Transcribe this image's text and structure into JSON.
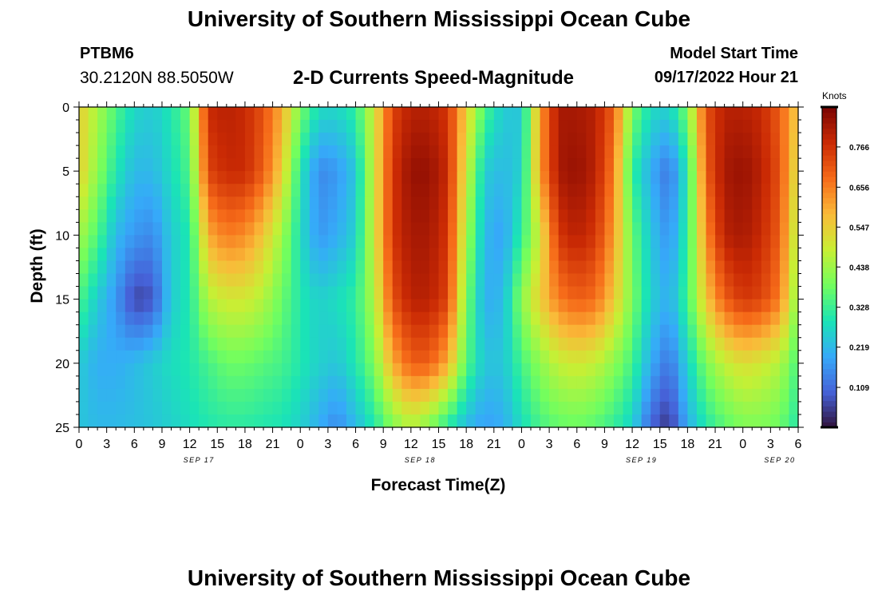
{
  "header": {
    "title": "University of Southern Mississippi Ocean Cube",
    "station": "PTBM6",
    "coords": "30.2120N  88.5050W",
    "subtitle": "2-D Currents Speed-Magnitude",
    "model_start_label": "Model Start Time",
    "model_start_value": "09/17/2022 Hour 21"
  },
  "footer": {
    "title": "University of Southern Mississippi Ocean Cube"
  },
  "colors": {
    "colormap": [
      "#30123b",
      "#4662d8",
      "#36aaf9",
      "#1ae4b6",
      "#72fe5e",
      "#c8ef34",
      "#faba39",
      "#f66b19",
      "#ca2a04",
      "#7a0403"
    ]
  },
  "chart_data": {
    "type": "heatmap",
    "title": "2-D Currents Speed-Magnitude",
    "xlabel": "Forecast Time(Z)",
    "ylabel": "Depth (ft)",
    "x_range_hours": [
      0,
      78
    ],
    "ylim": [
      0,
      25
    ],
    "y_ticks": [
      0,
      5,
      10,
      15,
      20,
      25
    ],
    "x_tick_labels": [
      "0",
      "3",
      "6",
      "9",
      "12",
      "15",
      "18",
      "21",
      "0",
      "3",
      "6",
      "9",
      "12",
      "15",
      "18",
      "21",
      "0",
      "3",
      "6",
      "9",
      "12",
      "15",
      "18",
      "21",
      "0",
      "3",
      "6"
    ],
    "date_labels": [
      {
        "hour": 13,
        "label": "SEP 17"
      },
      {
        "hour": 37,
        "label": "SEP 18"
      },
      {
        "hour": 61,
        "label": "SEP 19"
      },
      {
        "hour": 76,
        "label": "SEP 20"
      }
    ],
    "colorbar": {
      "units": "Knots",
      "min": 0.0,
      "max": 0.875,
      "ticks": [
        0.109,
        0.219,
        0.328,
        0.438,
        0.547,
        0.656,
        0.766
      ]
    },
    "depths_ft": [
      0,
      5,
      10,
      15,
      20,
      25
    ],
    "hours": [
      0,
      2,
      4,
      6,
      8,
      10,
      12,
      14,
      16,
      18,
      20,
      22,
      24,
      26,
      28,
      30,
      32,
      34,
      36,
      38,
      40,
      42,
      44,
      46,
      48,
      50,
      52,
      54,
      56,
      58,
      60,
      62,
      64,
      66,
      68,
      70,
      72,
      74,
      76,
      78
    ],
    "speed_knots": [
      [
        0.55,
        0.45,
        0.35,
        0.27,
        0.25,
        0.3,
        0.38,
        0.78,
        0.8,
        0.78,
        0.72,
        0.6,
        0.4,
        0.28,
        0.27,
        0.32,
        0.5,
        0.74,
        0.8,
        0.8,
        0.76,
        0.55,
        0.35,
        0.25,
        0.24,
        0.62,
        0.82,
        0.82,
        0.8,
        0.7,
        0.4,
        0.28,
        0.26,
        0.4,
        0.72,
        0.8,
        0.8,
        0.78,
        0.7,
        0.55
      ],
      [
        0.55,
        0.42,
        0.3,
        0.22,
        0.22,
        0.28,
        0.35,
        0.74,
        0.78,
        0.78,
        0.7,
        0.55,
        0.3,
        0.15,
        0.17,
        0.24,
        0.5,
        0.76,
        0.84,
        0.84,
        0.78,
        0.5,
        0.25,
        0.22,
        0.26,
        0.62,
        0.82,
        0.84,
        0.8,
        0.66,
        0.32,
        0.2,
        0.12,
        0.3,
        0.7,
        0.82,
        0.84,
        0.8,
        0.72,
        0.5
      ],
      [
        0.45,
        0.35,
        0.22,
        0.17,
        0.15,
        0.25,
        0.3,
        0.6,
        0.66,
        0.64,
        0.56,
        0.44,
        0.28,
        0.17,
        0.2,
        0.26,
        0.5,
        0.76,
        0.82,
        0.82,
        0.76,
        0.45,
        0.22,
        0.18,
        0.32,
        0.5,
        0.76,
        0.8,
        0.76,
        0.62,
        0.38,
        0.24,
        0.16,
        0.32,
        0.64,
        0.8,
        0.82,
        0.78,
        0.7,
        0.45
      ],
      [
        0.35,
        0.25,
        0.17,
        0.06,
        0.08,
        0.25,
        0.3,
        0.46,
        0.5,
        0.5,
        0.46,
        0.38,
        0.3,
        0.26,
        0.28,
        0.32,
        0.46,
        0.72,
        0.8,
        0.8,
        0.74,
        0.4,
        0.2,
        0.22,
        0.42,
        0.55,
        0.66,
        0.7,
        0.68,
        0.56,
        0.4,
        0.26,
        0.2,
        0.34,
        0.56,
        0.7,
        0.76,
        0.74,
        0.66,
        0.4
      ],
      [
        0.25,
        0.2,
        0.2,
        0.22,
        0.25,
        0.28,
        0.3,
        0.34,
        0.38,
        0.38,
        0.36,
        0.34,
        0.3,
        0.26,
        0.24,
        0.3,
        0.4,
        0.6,
        0.7,
        0.7,
        0.6,
        0.36,
        0.24,
        0.24,
        0.34,
        0.42,
        0.48,
        0.5,
        0.48,
        0.42,
        0.34,
        0.2,
        0.12,
        0.26,
        0.4,
        0.48,
        0.52,
        0.5,
        0.46,
        0.34
      ],
      [
        0.24,
        0.22,
        0.22,
        0.23,
        0.24,
        0.26,
        0.28,
        0.3,
        0.31,
        0.31,
        0.3,
        0.29,
        0.26,
        0.2,
        0.15,
        0.22,
        0.3,
        0.4,
        0.46,
        0.4,
        0.3,
        0.22,
        0.18,
        0.2,
        0.28,
        0.34,
        0.37,
        0.38,
        0.36,
        0.32,
        0.26,
        0.1,
        0.04,
        0.2,
        0.3,
        0.36,
        0.4,
        0.4,
        0.38,
        0.3
      ]
    ]
  }
}
